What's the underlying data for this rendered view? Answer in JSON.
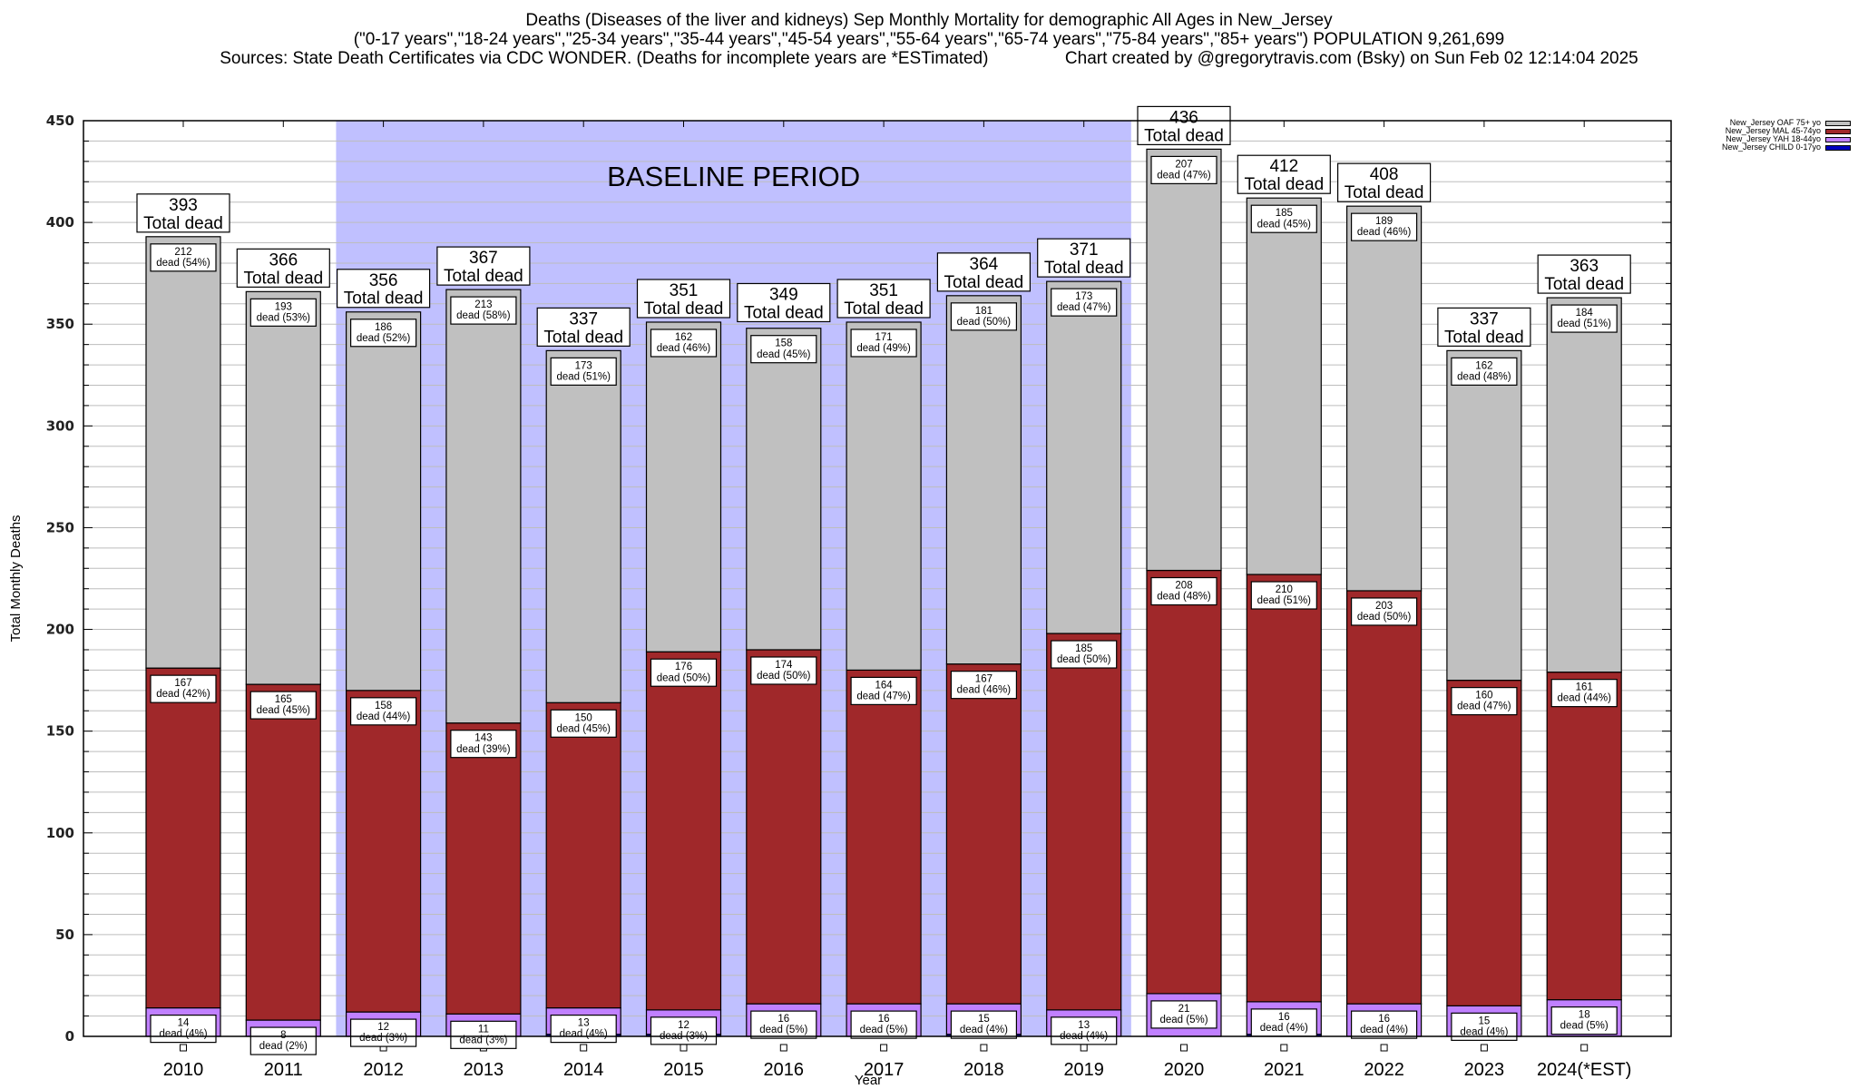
{
  "title": {
    "line1": "Deaths (Diseases of the liver and kidneys) Sep Monthly Mortality for demographic All Ages in New_Jersey",
    "line2": "(\"0-17 years\",\"18-24 years\",\"25-34 years\",\"35-44 years\",\"45-54 years\",\"55-64 years\",\"65-74 years\",\"75-84 years\",\"85+ years\") POPULATION 9,261,699",
    "line3": "Sources: State Death Certificates via CDC WONDER. (Deaths for incomplete years are *ESTimated)                Chart created by @gregorytravis.com (Bsky) on Sun Feb 02 12:14:04 2025"
  },
  "chart_data": {
    "type": "bar",
    "stacked": true,
    "title": "Deaths (Diseases of the liver and kidneys) Sep Monthly Mortality for demographic All Ages in New_Jersey",
    "xlabel": "Year",
    "ylabel": "Total Monthly Deaths",
    "ylim": [
      0,
      450
    ],
    "yticks": [
      0,
      50,
      100,
      150,
      200,
      250,
      300,
      350,
      400,
      450
    ],
    "minor_grid_step": 10,
    "grid": true,
    "legend_position": "top-right, outside plot",
    "categories": [
      "2010",
      "2011",
      "2012",
      "2013",
      "2014",
      "2015",
      "2016",
      "2017",
      "2018",
      "2019",
      "2020",
      "2021",
      "2022",
      "2023",
      "2024(*EST)"
    ],
    "series": [
      {
        "name": "New_Jersey CHILD 0-17yo",
        "color": "#0000c0",
        "values": [
          0,
          0,
          0,
          0,
          1,
          1,
          0,
          0,
          1,
          0,
          0,
          1,
          0,
          0,
          0
        ]
      },
      {
        "name": "New_Jersey YAH 18-44yo",
        "color": "#c080ff",
        "values": [
          14,
          8,
          12,
          11,
          13,
          12,
          16,
          16,
          15,
          13,
          21,
          16,
          16,
          15,
          18
        ],
        "labels": [
          "14\ndead (4%)",
          "8\ndead (2%)",
          "12\ndead (3%)",
          "11\ndead (3%)",
          "13\ndead (4%)",
          "12\ndead (3%)",
          "16\ndead (5%)",
          "16\ndead (5%)",
          "15\ndead (4%)",
          "13\ndead (4%)",
          "21\ndead (5%)",
          "16\ndead (4%)",
          "16\ndead (4%)",
          "15\ndead (4%)",
          "18\ndead (5%)"
        ]
      },
      {
        "name": "New_Jersey MAL 45-74yo",
        "color": "#a0282a",
        "values": [
          167,
          165,
          158,
          143,
          150,
          176,
          174,
          164,
          167,
          185,
          208,
          210,
          203,
          160,
          161
        ],
        "labels": [
          "167\ndead (42%)",
          "165\ndead (45%)",
          "158\ndead (44%)",
          "143\ndead (39%)",
          "150\ndead (45%)",
          "176\ndead (50%)",
          "174\ndead (50%)",
          "164\ndead (47%)",
          "167\ndead (46%)",
          "185\ndead (50%)",
          "208\ndead (48%)",
          "210\ndead (51%)",
          "203\ndead (50%)",
          "160\ndead (47%)",
          "161\ndead (44%)"
        ]
      },
      {
        "name": "New_Jersey OAF 75+ yo",
        "color": "#c0c0c0",
        "values": [
          212,
          193,
          186,
          213,
          173,
          162,
          158,
          171,
          181,
          173,
          207,
          185,
          189,
          162,
          184
        ],
        "labels": [
          "212\ndead (54%)",
          "193\ndead (53%)",
          "186\ndead (52%)",
          "213\ndead (58%)",
          "173\ndead (51%)",
          "162\ndead (46%)",
          "158\ndead (45%)",
          "171\ndead (49%)",
          "181\ndead (50%)",
          "173\ndead (47%)",
          "207\ndead (47%)",
          "185\ndead (45%)",
          "189\ndead (46%)",
          "162\ndead (48%)",
          "184\ndead (51%)"
        ]
      }
    ],
    "totals": [
      393,
      366,
      356,
      367,
      337,
      351,
      349,
      351,
      364,
      371,
      436,
      412,
      408,
      337,
      363
    ],
    "total_label_suffix": "Total dead",
    "baseline": {
      "label": "BASELINE PERIOD",
      "from": "2012",
      "to": "2019",
      "color": "#c0c0ff"
    },
    "legend_order": [
      "New_Jersey OAF 75+ yo",
      "New_Jersey MAL 45-74yo",
      "New_Jersey YAH 18-44yo",
      "New_Jersey CHILD 0-17yo"
    ]
  }
}
